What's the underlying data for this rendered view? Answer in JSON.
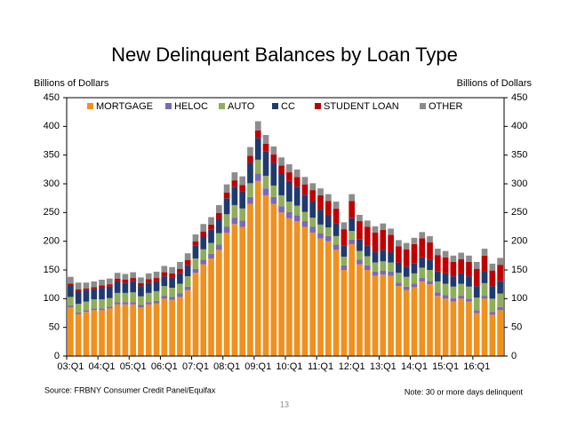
{
  "chart_data": {
    "type": "stacked_bar",
    "title": "New Delinquent Balances by Loan Type",
    "y_label": "Billions of Dollars",
    "y2_label": "Billions of Dollars",
    "source": "Source: FRBNY Consumer Credit Panel/Equifax",
    "note": "Note:  30 or more days delinquent",
    "page_number": "13",
    "categories": [
      "03:Q1",
      null,
      null,
      null,
      "04:Q1",
      null,
      null,
      null,
      "05:Q1",
      null,
      null,
      null,
      "06:Q1",
      null,
      null,
      null,
      "07:Q1",
      null,
      null,
      null,
      "08:Q1",
      null,
      null,
      null,
      "09:Q1",
      null,
      null,
      null,
      "10:Q1",
      null,
      null,
      null,
      "11:Q1",
      null,
      null,
      null,
      "12:Q1",
      null,
      null,
      null,
      "13:Q1",
      null,
      null,
      null,
      "14:Q1",
      null,
      null,
      null,
      "15:Q1",
      null,
      null,
      null,
      "16:Q1",
      null,
      null,
      null
    ],
    "series": [
      {
        "name": "MORTGAGE",
        "color": "#f0901e",
        "values": [
          85,
          73,
          77,
          80,
          80,
          83,
          90,
          90,
          90,
          85,
          90,
          92,
          100,
          98,
          103,
          115,
          145,
          160,
          170,
          185,
          215,
          230,
          225,
          265,
          305,
          280,
          265,
          250,
          240,
          235,
          225,
          215,
          205,
          200,
          185,
          150,
          195,
          160,
          150,
          140,
          142,
          140,
          122,
          115,
          120,
          130,
          125,
          105,
          100,
          95,
          100,
          95,
          75,
          100,
          72,
          80
        ]
      },
      {
        "name": "HELOC",
        "color": "#7b68b8",
        "values": [
          3,
          3,
          3,
          3,
          3,
          3,
          4,
          4,
          4,
          4,
          4,
          4,
          5,
          5,
          6,
          6,
          7,
          8,
          8,
          9,
          10,
          11,
          11,
          12,
          13,
          12,
          12,
          11,
          11,
          10,
          10,
          10,
          9,
          9,
          9,
          8,
          8,
          8,
          8,
          7,
          7,
          7,
          6,
          6,
          6,
          6,
          6,
          6,
          6,
          6,
          5,
          5,
          5,
          5,
          5,
          5
        ]
      },
      {
        "name": "AUTO",
        "color": "#8fae5a",
        "values": [
          15,
          15,
          15,
          16,
          16,
          15,
          16,
          16,
          17,
          15,
          16,
          17,
          17,
          16,
          17,
          18,
          18,
          18,
          19,
          20,
          22,
          22,
          21,
          24,
          24,
          22,
          20,
          19,
          18,
          17,
          16,
          16,
          15,
          15,
          15,
          15,
          15,
          15,
          16,
          16,
          16,
          16,
          17,
          17,
          18,
          18,
          19,
          19,
          20,
          20,
          21,
          21,
          22,
          22,
          23,
          24
        ]
      },
      {
        "name": "CC",
        "color": "#1f3a6e",
        "values": [
          20,
          22,
          20,
          18,
          20,
          20,
          20,
          18,
          20,
          18,
          18,
          17,
          17,
          18,
          19,
          20,
          22,
          22,
          23,
          25,
          28,
          32,
          30,
          36,
          38,
          42,
          40,
          37,
          36,
          33,
          30,
          28,
          26,
          22,
          22,
          20,
          22,
          20,
          18,
          18,
          20,
          18,
          18,
          18,
          18,
          18,
          18,
          18,
          18,
          18,
          18,
          18,
          20,
          20,
          22,
          22
        ]
      },
      {
        "name": "STUDENT LOAN",
        "color": "#c00000",
        "values": [
          3,
          3,
          3,
          3,
          4,
          4,
          5,
          5,
          5,
          5,
          6,
          6,
          7,
          7,
          7,
          8,
          8,
          9,
          9,
          10,
          10,
          11,
          11,
          12,
          13,
          14,
          14,
          15,
          15,
          17,
          18,
          20,
          25,
          24,
          26,
          28,
          30,
          32,
          33,
          34,
          35,
          30,
          28,
          30,
          33,
          33,
          30,
          28,
          28,
          25,
          25,
          25,
          30,
          28,
          27,
          28
        ]
      },
      {
        "name": "OTHER",
        "color": "#8c8c8c",
        "values": [
          12,
          12,
          10,
          10,
          10,
          10,
          10,
          10,
          10,
          10,
          10,
          11,
          11,
          11,
          12,
          12,
          12,
          13,
          13,
          14,
          14,
          14,
          15,
          15,
          16,
          15,
          14,
          14,
          14,
          13,
          13,
          12,
          12,
          12,
          12,
          12,
          12,
          11,
          11,
          11,
          11,
          11,
          11,
          11,
          11,
          11,
          11,
          11,
          11,
          11,
          11,
          11,
          12,
          12,
          12,
          12
        ]
      }
    ],
    "ylim": [
      0,
      450
    ],
    "yticks": [
      0,
      50,
      100,
      150,
      200,
      250,
      300,
      350,
      400,
      450
    ],
    "y2lim": [
      0,
      450
    ],
    "y2ticks": [
      0,
      50,
      100,
      150,
      200,
      250,
      300,
      350,
      400,
      450
    ],
    "legend": "top"
  }
}
